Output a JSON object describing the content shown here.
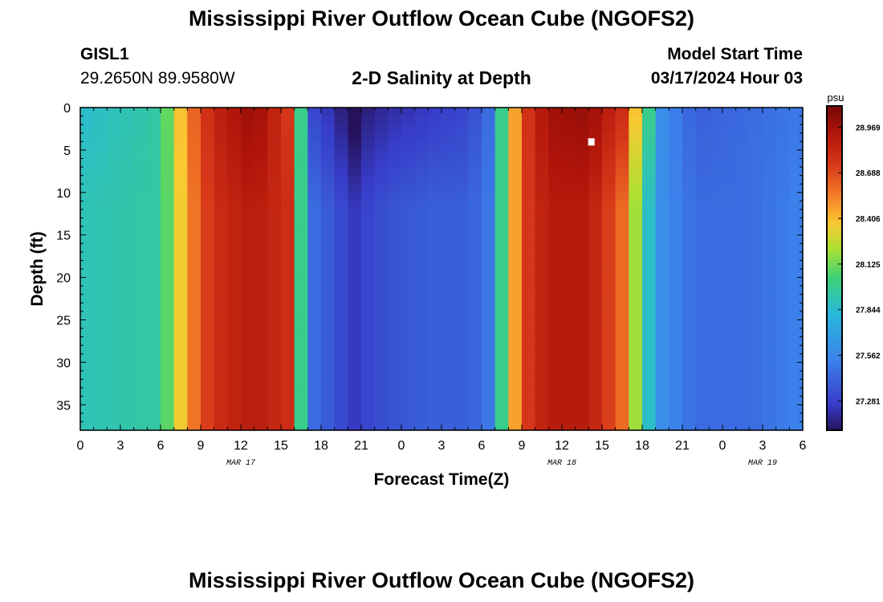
{
  "page": {
    "title_top": "Mississippi River Outflow Ocean Cube (NGOFS2)",
    "title_bottom": "Mississippi River Outflow Ocean Cube (NGOFS2)",
    "station_id": "GISL1",
    "station_coords": "29.2650N  89.9580W",
    "subtitle": "2-D Salinity at Depth",
    "model_start_label": "Model Start Time",
    "model_start_value": "03/17/2024 Hour 03"
  },
  "chart_data": {
    "type": "heatmap",
    "title": "2-D Salinity at Depth",
    "xlabel": "Forecast Time(Z)",
    "ylabel": "Depth (ft)",
    "xlim": [
      0,
      54
    ],
    "ylim": [
      0,
      38
    ],
    "x_tick_values": [
      0,
      3,
      6,
      9,
      12,
      15,
      18,
      21,
      24,
      27,
      30,
      33,
      36,
      39,
      42,
      45,
      48,
      51,
      54
    ],
    "x_tick_labels": [
      "0",
      "3",
      "6",
      "9",
      "12",
      "15",
      "18",
      "21",
      "0",
      "3",
      "6",
      "9",
      "12",
      "15",
      "18",
      "21",
      "0",
      "3",
      "6"
    ],
    "date_labels": [
      {
        "x": 12,
        "text": "MAR 17"
      },
      {
        "x": 36,
        "text": "MAR 18"
      },
      {
        "x": 51,
        "text": "MAR 19"
      }
    ],
    "y_ticks": [
      0,
      5,
      10,
      15,
      20,
      25,
      30,
      35
    ],
    "colorbar": {
      "unit": "psu",
      "min": 27.1,
      "max": 29.1,
      "tick_values": [
        27.281,
        27.562,
        27.844,
        28.125,
        28.406,
        28.688,
        28.969
      ],
      "tick_labels": [
        "27.281",
        "27.562",
        "27.844",
        "28.125",
        "28.406",
        "28.688",
        "28.969"
      ]
    },
    "salinity_profile": {
      "hours": [
        0,
        6,
        8,
        10,
        13,
        15.5,
        16.5,
        17.5,
        19,
        20.5,
        21.5,
        23,
        26,
        29,
        30.5,
        31.5,
        33,
        35,
        38,
        40.5,
        42,
        43.5,
        46,
        50,
        54
      ],
      "surface": [
        27.85,
        27.95,
        28.55,
        28.85,
        29.02,
        28.75,
        28.0,
        27.3,
        27.2,
        27.05,
        27.15,
        27.2,
        27.25,
        27.3,
        27.45,
        28.0,
        28.7,
        28.98,
        29.02,
        28.8,
        28.2,
        27.6,
        27.4,
        27.45,
        27.5
      ],
      "bottom": [
        27.9,
        27.95,
        28.5,
        28.8,
        28.9,
        28.8,
        28.0,
        27.45,
        27.35,
        27.25,
        27.3,
        27.35,
        27.4,
        27.4,
        27.5,
        28.0,
        28.7,
        28.9,
        28.9,
        28.6,
        28.0,
        27.6,
        27.45,
        27.45,
        27.55
      ]
    },
    "marker": {
      "x": 38.2,
      "y": 4
    }
  }
}
